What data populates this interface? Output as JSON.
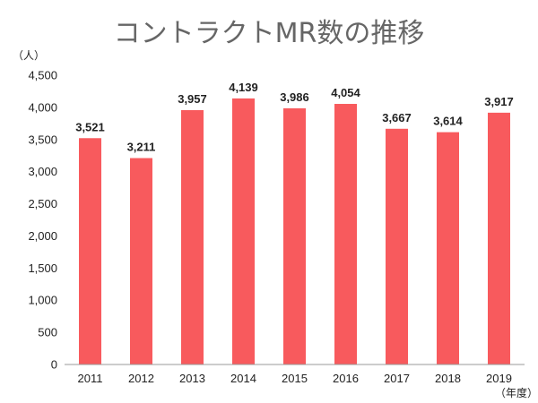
{
  "chart_data": {
    "type": "bar",
    "title": "コントラクトMR数の推移",
    "ylabel": "（人）",
    "xlabel": "（年度）",
    "categories": [
      "2011",
      "2012",
      "2013",
      "2014",
      "2015",
      "2016",
      "2017",
      "2018",
      "2019"
    ],
    "values": [
      3521,
      3211,
      3957,
      4139,
      3986,
      4054,
      3667,
      3614,
      3917
    ],
    "value_labels": [
      "3,521",
      "3,211",
      "3,957",
      "4,139",
      "3,986",
      "4,054",
      "3,667",
      "3,614",
      "3,917"
    ],
    "yticks": [
      "0",
      "500",
      "1,000",
      "1,500",
      "2,000",
      "2,500",
      "3,000",
      "3,500",
      "4,000",
      "4,500"
    ],
    "ylim": [
      0,
      4500
    ],
    "grid": false,
    "legend": "none",
    "bar_color": "#f85a5d"
  }
}
